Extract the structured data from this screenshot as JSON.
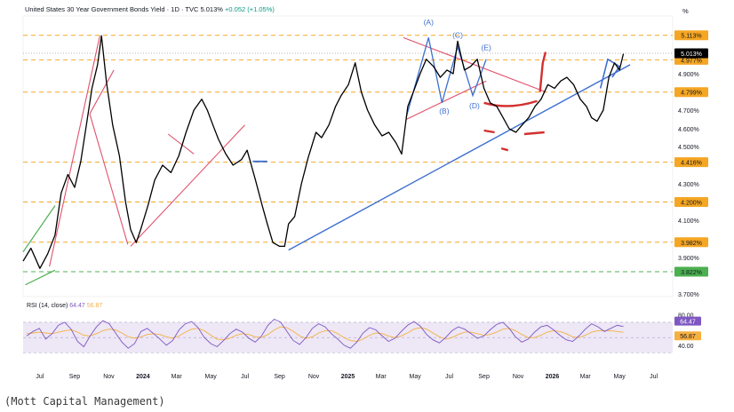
{
  "header": {
    "symbol_text": "United States 30 Year Government Bonds Yield · 1D · TVC",
    "last_value": "5.013%",
    "change_text": "+0.052 (+1.05%)",
    "percent_unit": "%"
  },
  "caption": "(Mott Capital Management)",
  "chart_data": {
    "type": "line",
    "y_unit": "%",
    "ylim": [
      3.7,
      5.2
    ],
    "y_ticks": [
      "4.900%",
      "4.700%",
      "4.600%",
      "4.500%",
      "4.300%",
      "4.100%",
      "3.900%",
      "3.700%"
    ],
    "y_tick_values": [
      4.9,
      4.7,
      4.6,
      4.5,
      4.3,
      4.1,
      3.9,
      3.7
    ],
    "x_ticks": [
      "Jul",
      "Sep",
      "Nov",
      "2024",
      "Mar",
      "May",
      "Jul",
      "Sep",
      "Nov",
      "2025",
      "Mar",
      "May",
      "Jul",
      "Sep",
      "Nov",
      "2026",
      "Mar",
      "May",
      "Jul"
    ],
    "x_tick_dates": [
      "2023-07",
      "2023-09",
      "2023-11",
      "2024-01",
      "2024-03",
      "2024-05",
      "2024-07",
      "2024-09",
      "2024-11",
      "2025-01",
      "2025-03",
      "2025-05",
      "2025-07",
      "2025-09",
      "2025-11",
      "2026-01",
      "2026-03",
      "2026-05",
      "2026-07"
    ],
    "levels": [
      {
        "value": 5.113,
        "label": "5.113%",
        "color": "#f5a623"
      },
      {
        "value": 4.977,
        "label": "4.977%",
        "color": "#f5a623"
      },
      {
        "value": 4.799,
        "label": "4.799%",
        "color": "#f5a623"
      },
      {
        "value": 4.416,
        "label": "4.416%",
        "color": "#f5a623"
      },
      {
        "value": 4.2,
        "label": "4.200%",
        "color": "#f5a623"
      },
      {
        "value": 3.982,
        "label": "3.982%",
        "color": "#f5a623"
      },
      {
        "value": 3.822,
        "label": "3.822%",
        "color": "#4caf50"
      }
    ],
    "last_price": {
      "value": 5.013,
      "label": "5.013%"
    },
    "wave_labels": [
      "(A)",
      "(B)",
      "(C)",
      "(D)",
      "(E)"
    ],
    "series": [
      {
        "x": [
          "2023-06-01",
          "2023-06-15",
          "2023-07-01",
          "2023-07-15",
          "2023-07-28",
          "2023-08-08",
          "2023-08-20",
          "2023-09-01",
          "2023-09-12",
          "2023-09-22",
          "2023-10-02",
          "2023-10-12",
          "2023-10-19",
          "2023-10-28",
          "2023-11-08",
          "2023-11-20",
          "2023-12-01",
          "2023-12-10",
          "2023-12-20",
          "2023-12-28",
          "2024-01-10",
          "2024-01-22",
          "2024-02-05",
          "2024-02-20",
          "2024-03-05",
          "2024-03-18",
          "2024-04-01",
          "2024-04-15",
          "2024-04-25",
          "2024-05-05",
          "2024-05-15",
          "2024-05-28",
          "2024-06-10",
          "2024-06-25",
          "2024-07-05",
          "2024-07-20",
          "2024-08-01",
          "2024-08-10",
          "2024-08-20",
          "2024-09-01",
          "2024-09-10",
          "2024-09-17",
          "2024-09-28",
          "2024-10-10",
          "2024-10-22",
          "2024-11-05",
          "2024-11-15",
          "2024-11-28",
          "2024-12-10",
          "2024-12-20",
          "2025-01-02",
          "2025-01-14",
          "2025-01-25",
          "2025-02-05",
          "2025-02-18",
          "2025-03-03",
          "2025-03-15",
          "2025-03-28",
          "2025-04-07",
          "2025-04-18",
          "2025-04-28",
          "2025-05-10",
          "2025-05-21",
          "2025-06-03",
          "2025-06-15",
          "2025-06-27",
          "2025-07-08",
          "2025-07-16",
          "2025-07-28",
          "2025-08-08",
          "2025-08-20",
          "2025-09-01",
          "2025-09-12",
          "2025-09-24",
          "2025-10-05",
          "2025-10-16",
          "2025-10-28",
          "2025-11-08",
          "2025-11-20",
          "2025-12-01",
          "2025-12-12",
          "2025-12-24",
          "2026-01-05",
          "2026-01-16",
          "2026-01-27",
          "2026-02-08",
          "2026-02-20",
          "2026-03-03",
          "2026-03-12",
          "2026-03-22",
          "2026-04-02",
          "2026-04-12",
          "2026-04-22",
          "2026-05-01",
          "2026-05-08"
        ],
        "values": [
          3.88,
          3.95,
          3.84,
          3.92,
          4.02,
          4.25,
          4.35,
          4.28,
          4.42,
          4.62,
          4.82,
          4.95,
          5.11,
          4.85,
          4.62,
          4.45,
          4.2,
          4.05,
          3.98,
          4.05,
          4.18,
          4.32,
          4.4,
          4.36,
          4.45,
          4.58,
          4.7,
          4.76,
          4.7,
          4.62,
          4.54,
          4.46,
          4.4,
          4.43,
          4.48,
          4.32,
          4.18,
          4.08,
          3.98,
          3.96,
          3.96,
          4.08,
          4.12,
          4.3,
          4.44,
          4.58,
          4.55,
          4.62,
          4.72,
          4.78,
          4.84,
          4.96,
          4.8,
          4.7,
          4.62,
          4.56,
          4.58,
          4.52,
          4.46,
          4.72,
          4.8,
          4.9,
          4.98,
          4.94,
          4.88,
          4.92,
          4.9,
          5.08,
          4.92,
          4.94,
          4.98,
          4.82,
          4.74,
          4.72,
          4.66,
          4.6,
          4.58,
          4.62,
          4.66,
          4.72,
          4.76,
          4.84,
          4.82,
          4.86,
          4.88,
          4.84,
          4.76,
          4.72,
          4.66,
          4.64,
          4.7,
          4.88,
          4.96,
          4.92,
          5.01
        ]
      }
    ],
    "rsi": {
      "label": "RSI (14, close)",
      "value": "64.47",
      "ma_value": "56.87",
      "ylim": [
        20,
        85
      ],
      "ticks": [
        "80.00",
        "40.00"
      ],
      "tick_values": [
        80,
        40
      ],
      "series": [
        52,
        58,
        62,
        48,
        55,
        66,
        70,
        61,
        45,
        38,
        52,
        64,
        72,
        68,
        56,
        44,
        36,
        42,
        58,
        62,
        55,
        48,
        40,
        46,
        60,
        68,
        71,
        63,
        50,
        42,
        38,
        46,
        55,
        61,
        57,
        49,
        44,
        52,
        66,
        74,
        70,
        58,
        46,
        41,
        50,
        62,
        68,
        64,
        55,
        48,
        40,
        36,
        44,
        56,
        63,
        60,
        52,
        45,
        49,
        58,
        66,
        71,
        65,
        54,
        47,
        43,
        50,
        59,
        64,
        61,
        55,
        49,
        52,
        60,
        67,
        70,
        62,
        51,
        44,
        48,
        57,
        64,
        66,
        60,
        53,
        47,
        45,
        52,
        61,
        68,
        64,
        58,
        62,
        66,
        64.47
      ],
      "ma": [
        55,
        56,
        57,
        56,
        55,
        57,
        59,
        60,
        57,
        53,
        52,
        55,
        59,
        61,
        60,
        56,
        51,
        49,
        51,
        54,
        55,
        54,
        51,
        49,
        52,
        57,
        61,
        62,
        59,
        53,
        48,
        47,
        49,
        53,
        55,
        54,
        51,
        50,
        54,
        60,
        64,
        63,
        58,
        52,
        49,
        51,
        56,
        59,
        59,
        55,
        50,
        46,
        45,
        48,
        53,
        56,
        55,
        52,
        50,
        52,
        56,
        61,
        63,
        61,
        56,
        51,
        48,
        50,
        54,
        57,
        57,
        55,
        53,
        54,
        57,
        61,
        62,
        59,
        54,
        50,
        50,
        53,
        57,
        59,
        58,
        55,
        51,
        50,
        53,
        57,
        59,
        59,
        59,
        58,
        56.87
      ]
    }
  }
}
